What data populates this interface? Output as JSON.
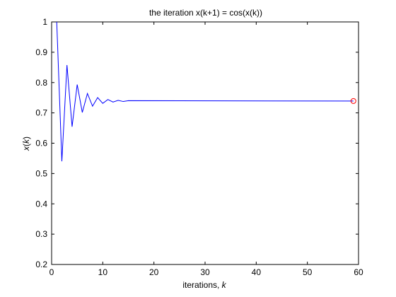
{
  "chart_data": {
    "type": "line",
    "title": "the iteration x(k+1) = cos(x(k))",
    "xlabel": {
      "text": "iterations, ",
      "var": "k"
    },
    "ylabel": {
      "prefix": "x(",
      "var": "k",
      "suffix": ")"
    },
    "xlim": [
      0,
      60
    ],
    "ylim": [
      0.2,
      1
    ],
    "xticks": [
      0,
      10,
      20,
      30,
      40,
      50,
      60
    ],
    "yticks": [
      0.2,
      0.3,
      0.4,
      0.5,
      0.6,
      0.7,
      0.8,
      0.9,
      1
    ],
    "grid": false,
    "series": [
      {
        "color": "#0000ff",
        "x": [
          1,
          2,
          3,
          4,
          5,
          6,
          7,
          8,
          9,
          10,
          11,
          12,
          13,
          14,
          15,
          59
        ],
        "y": [
          1.0,
          0.5403,
          0.8576,
          0.6543,
          0.7935,
          0.7014,
          0.764,
          0.7221,
          0.7504,
          0.7314,
          0.7442,
          0.7356,
          0.7414,
          0.7375,
          0.7401,
          0.7391
        ]
      }
    ],
    "marker": {
      "x": 59,
      "y": 0.7391,
      "shape": "circle",
      "color": "#ff0000"
    }
  }
}
